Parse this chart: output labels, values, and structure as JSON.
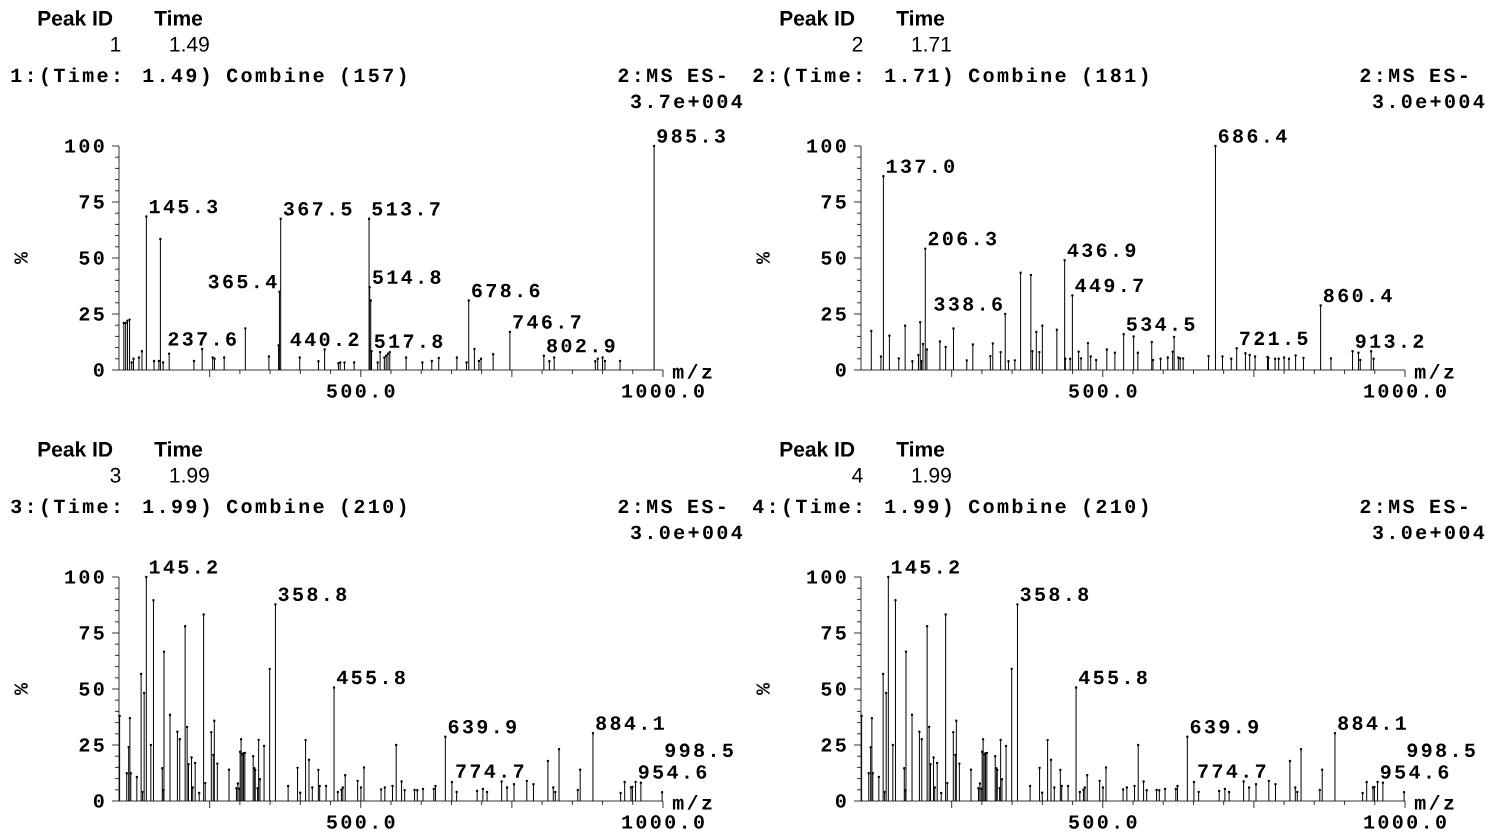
{
  "chart_data": [
    {
      "type": "lollipop",
      "marker": "circle",
      "title": "1:(Time: 1.49) Combine (157)",
      "xlabel": "m/z",
      "ylabel": "%",
      "color": "#000000",
      "xlim": [
        100,
        1000
      ],
      "ylim": [
        0,
        100
      ],
      "xticks": [
        {
          "value": 250,
          "label": null
        },
        {
          "value": 500,
          "label": "500.0"
        },
        {
          "value": 750,
          "label": null
        },
        {
          "value": 1000,
          "label": "1000.0"
        }
      ],
      "yticks": [
        0,
        25,
        50,
        75,
        100
      ],
      "x": [
        108,
        111,
        114,
        117.5,
        121,
        124,
        133,
        138,
        145.3,
        158,
        166,
        168.5,
        173,
        183,
        224,
        237.6,
        255,
        258,
        274,
        309,
        348,
        364,
        365.4,
        367.5,
        399,
        430,
        440.2,
        463,
        466,
        473,
        489,
        513.7,
        514.8,
        516.5,
        517.8,
        528,
        532,
        539,
        542,
        545,
        548,
        575,
        602,
        617.5,
        629,
        659,
        675,
        678.6,
        688,
        695.5,
        699,
        719,
        746.7,
        802.9,
        812,
        820,
        888,
        892,
        900,
        904,
        929,
        985.3
      ],
      "values": [
        21,
        21,
        22,
        22.5,
        3.4,
        5,
        5.6,
        8.4,
        68.5,
        4,
        4,
        58.5,
        3.4,
        7.3,
        4,
        9.4,
        5.6,
        5,
        5.6,
        18.6,
        6,
        11,
        35,
        67.5,
        5.6,
        3.9,
        9.2,
        3,
        3.4,
        3.4,
        3.4,
        67.5,
        37,
        31,
        8.4,
        3.4,
        8,
        5.6,
        6.4,
        7.3,
        8,
        5.6,
        3.4,
        4,
        5.4,
        5.6,
        3.4,
        31,
        9.4,
        4,
        5,
        7,
        17,
        6.4,
        3.9,
        5.6,
        3.9,
        5,
        5.6,
        4,
        4,
        100
      ],
      "annotations": [
        "Peak ID",
        "Time",
        "1",
        "1.49",
        "2:MS ES-",
        "3.7e+004",
        {
          "text": "145.3",
          "x": 145.3,
          "y": 68.5
        },
        {
          "text": "237.6",
          "x": 237.6,
          "y": 9.4
        },
        {
          "text": "365.4",
          "x": 365.4,
          "y": 35
        },
        {
          "text": "367.5",
          "x": 367.5,
          "y": 67.5
        },
        {
          "text": "440.2",
          "x": 440.2,
          "y": 9.2
        },
        {
          "text": "513.7",
          "x": 513.7,
          "y": 67.5
        },
        {
          "text": "514.8",
          "x": 514.8,
          "y": 37
        },
        {
          "text": "517.8",
          "x": 517.8,
          "y": 8.4
        },
        {
          "text": "678.6",
          "x": 678.6,
          "y": 31
        },
        {
          "text": "746.7",
          "x": 746.7,
          "y": 17
        },
        {
          "text": "802.9",
          "x": 802.9,
          "y": 6.4
        },
        {
          "text": "985.3",
          "x": 985.3,
          "y": 100
        }
      ]
    },
    {
      "type": "lollipop",
      "marker": "circle",
      "title": "2:(Time: 1.71) Combine (181)",
      "xlabel": "m/z",
      "ylabel": "%",
      "color": "#000000",
      "xlim": [
        100,
        1000
      ],
      "ylim": [
        0,
        100
      ],
      "xticks": [
        {
          "value": 250,
          "label": null
        },
        {
          "value": 500,
          "label": "500.0"
        },
        {
          "value": 750,
          "label": null
        },
        {
          "value": 1000,
          "label": "1000.0"
        }
      ],
      "yticks": [
        0,
        25,
        50,
        75,
        100
      ],
      "x": [
        117,
        133,
        137.0,
        147,
        162.5,
        173,
        185,
        195,
        198,
        200,
        202.5,
        206.3,
        209,
        230.5,
        240,
        253,
        275,
        285,
        314,
        318,
        331,
        338.6,
        344,
        354.5,
        364,
        381,
        383.5,
        390,
        395,
        400,
        424,
        436.9,
        438,
        446,
        449.7,
        460,
        464,
        475.5,
        480,
        489,
        506.7,
        520,
        534.5,
        551,
        558,
        581,
        583,
        595.6,
        607.5,
        615.6,
        618,
        625,
        628,
        633,
        675,
        686.4,
        698,
        712.5,
        721.5,
        736,
        743,
        752,
        772.5,
        774,
        785,
        791,
        800,
        808,
        819,
        832,
        860.4,
        877.5,
        913.2,
        923,
        926,
        944,
        948
      ],
      "values": [
        17.4,
        6,
        86.5,
        15.3,
        5.2,
        19.8,
        3.9,
        6.7,
        21.3,
        3.9,
        11.6,
        54.2,
        9.2,
        12.7,
        10.3,
        18.5,
        4.3,
        11.4,
        6.2,
        11.8,
        8,
        25,
        3.9,
        4.3,
        43.4,
        42.4,
        8.4,
        17,
        8,
        19.8,
        18,
        49,
        5,
        5,
        33.3,
        8.2,
        5.2,
        12,
        6,
        4.5,
        9.2,
        7.7,
        16,
        15,
        7.7,
        12.5,
        4.5,
        5,
        5.6,
        8.2,
        14.8,
        5.6,
        5.2,
        5.2,
        6.2,
        100,
        6,
        5,
        9.7,
        7.5,
        6.7,
        6,
        5.8,
        5.4,
        5,
        5,
        5.6,
        5,
        6.5,
        5.4,
        28.8,
        5.2,
        8.4,
        7.7,
        4.5,
        8.4,
        5
      ],
      "annotations": [
        "Peak ID",
        "Time",
        "2",
        "1.71",
        "2:MS ES-",
        "3.0e+004",
        {
          "text": "137.0",
          "x": 137.0,
          "y": 86.5
        },
        {
          "text": "206.3",
          "x": 206.3,
          "y": 54.2
        },
        {
          "text": "338.6",
          "x": 338.6,
          "y": 25
        },
        {
          "text": "436.9",
          "x": 436.9,
          "y": 49
        },
        {
          "text": "449.7",
          "x": 449.7,
          "y": 33.3
        },
        {
          "text": "534.5",
          "x": 534.5,
          "y": 16
        },
        {
          "text": "686.4",
          "x": 686.4,
          "y": 100
        },
        {
          "text": "721.5",
          "x": 721.5,
          "y": 9.7
        },
        {
          "text": "860.4",
          "x": 860.4,
          "y": 28.8
        },
        {
          "text": "913.2",
          "x": 913.2,
          "y": 8.4
        }
      ]
    },
    {
      "type": "lollipop",
      "marker": "circle",
      "title": "3:(Time: 1.99) Combine (210)",
      "xlabel": "m/z",
      "ylabel": "%",
      "color": "#000000",
      "xlim": [
        100,
        1000
      ],
      "ylim": [
        0,
        100
      ],
      "xticks": [
        {
          "value": 250,
          "label": null
        },
        {
          "value": 500,
          "label": "500.0"
        },
        {
          "value": 750,
          "label": null
        },
        {
          "value": 1000,
          "label": "1000.0"
        }
      ],
      "yticks": [
        0,
        25,
        50,
        75,
        100
      ],
      "x": [
        101,
        112.8,
        116,
        118,
        119.5,
        129.5,
        136.6,
        139,
        141.6,
        145.2,
        152.7,
        157,
        171.6,
        173,
        174.4,
        184.4,
        196.6,
        200.5,
        209.4,
        212.7,
        215,
        220,
        222,
        226,
        232.7,
        240,
        242.7,
        252.7,
        256,
        257.7,
        262.7,
        282,
        294.3,
        296.6,
        298.8,
        300.4,
        302,
        303.8,
        306,
        308.2,
        322,
        323.8,
        325.4,
        329.3,
        331,
        333.2,
        340,
        349.3,
        358.8,
        379.8,
        395.4,
        399.8,
        408.7,
        414.3,
        419.8,
        429.8,
        432,
        442.6,
        455.8,
        462,
        468,
        470.3,
        474.2,
        494.8,
        500.3,
        505.3,
        533.6,
        539.8,
        552.5,
        558.6,
        567.5,
        572.6,
        589,
        593.5,
        603,
        620.8,
        623.6,
        639.9,
        650.8,
        658.6,
        692.5,
        702,
        709,
        733,
        742,
        753.5,
        774.7,
        785.7,
        809.6,
        818.5,
        821.8,
        828,
        859,
        863,
        884.1,
        929.9,
        936.6,
        947,
        949.4,
        954.6,
        963.4,
        998.5
      ],
      "values": [
        38,
        12.4,
        24,
        37,
        12.4,
        10.7,
        56.7,
        4,
        48.2,
        100,
        25,
        89.6,
        14.6,
        4.8,
        66.7,
        38.5,
        30.9,
        27.6,
        78,
        33.1,
        16.4,
        19.4,
        6,
        17,
        3.6,
        83.3,
        8,
        30.7,
        20.6,
        35.8,
        16.7,
        14,
        5.7,
        7.8,
        5.5,
        22,
        27.6,
        20.9,
        21.3,
        21.5,
        20,
        14.6,
        13.9,
        5.7,
        27.3,
        9.7,
        24.6,
        59,
        87.8,
        6.7,
        14.8,
        3.7,
        27.2,
        18.4,
        6,
        13.9,
        6.7,
        6.7,
        50.7,
        4,
        5,
        6,
        11.5,
        9,
        6,
        15,
        5.2,
        6,
        6.7,
        25,
        8.7,
        4.8,
        4.9,
        4.8,
        5.4,
        5.4,
        6.7,
        28.7,
        8.5,
        4,
        4.5,
        5.4,
        4,
        8.7,
        6,
        7.5,
        9,
        7.5,
        17.9,
        6,
        4,
        23.1,
        4.9,
        14,
        30.3,
        3.6,
        8.5,
        6,
        6.3,
        8.5,
        8.2,
        3.9
      ],
      "annotations": [
        "Peak ID",
        "Time",
        "3",
        "1.99",
        "2:MS ES-",
        "3.0e+004",
        {
          "text": "145.2",
          "x": 145.2,
          "y": 100
        },
        {
          "text": "358.8",
          "x": 358.8,
          "y": 87.8
        },
        {
          "text": "455.8",
          "x": 455.8,
          "y": 50.7
        },
        {
          "text": "639.9",
          "x": 639.9,
          "y": 28.7
        },
        {
          "text": "774.7",
          "x": 774.7,
          "y": 9
        },
        {
          "text": "884.1",
          "x": 884.1,
          "y": 30.3
        },
        {
          "text": "954.6",
          "x": 954.6,
          "y": 8.5
        },
        {
          "text": "998.5",
          "x": 998.5,
          "y": 3.9
        }
      ]
    },
    {
      "type": "lollipop",
      "marker": "circle",
      "title": "4:(Time: 1.99) Combine (210)",
      "xlabel": "m/z",
      "ylabel": "%",
      "color": "#000000",
      "xlim": [
        100,
        1000
      ],
      "ylim": [
        0,
        100
      ],
      "xticks": [
        {
          "value": 250,
          "label": null
        },
        {
          "value": 500,
          "label": "500.0"
        },
        {
          "value": 750,
          "label": null
        },
        {
          "value": 1000,
          "label": "1000.0"
        }
      ],
      "yticks": [
        0,
        25,
        50,
        75,
        100
      ],
      "x": [
        101,
        112.8,
        116,
        118,
        119.5,
        129.5,
        136.6,
        139,
        141.6,
        145.2,
        152.7,
        157,
        171.6,
        173,
        174.4,
        184.4,
        196.6,
        200.5,
        209.4,
        212.7,
        215,
        220,
        222,
        226,
        232.7,
        240,
        242.7,
        252.7,
        256,
        257.7,
        262.7,
        282,
        294.3,
        296.6,
        298.8,
        300.4,
        302,
        303.8,
        306,
        308.2,
        322,
        323.8,
        325.4,
        329.3,
        331,
        333.2,
        340,
        349.3,
        358.8,
        379.8,
        395.4,
        399.8,
        408.7,
        414.3,
        419.8,
        429.8,
        432,
        442.6,
        455.8,
        462,
        468,
        470.3,
        474.2,
        494.8,
        500.3,
        505.3,
        533.6,
        539.8,
        552.5,
        558.6,
        567.5,
        572.6,
        589,
        593.5,
        603,
        620.8,
        623.6,
        639.9,
        650.8,
        658.6,
        692.5,
        702,
        709,
        733,
        742,
        753.5,
        774.7,
        785.7,
        809.6,
        818.5,
        821.8,
        828,
        859,
        863,
        884.1,
        929.9,
        936.6,
        947,
        949.4,
        954.6,
        963.4,
        998.5
      ],
      "values": [
        38,
        12.4,
        24,
        37,
        12.4,
        10.7,
        56.7,
        4,
        48.2,
        100,
        25,
        89.6,
        14.6,
        4.8,
        66.7,
        38.5,
        30.9,
        27.6,
        78,
        33.1,
        16.4,
        19.4,
        6,
        17,
        3.6,
        83.3,
        8,
        30.7,
        20.6,
        35.8,
        16.7,
        14,
        5.7,
        7.8,
        5.5,
        22,
        27.6,
        20.9,
        21.3,
        21.5,
        20,
        14.6,
        13.9,
        5.7,
        27.3,
        9.7,
        24.6,
        59,
        87.8,
        6.7,
        14.8,
        3.7,
        27.2,
        18.4,
        6,
        13.9,
        6.7,
        6.7,
        50.7,
        4,
        5,
        6,
        11.5,
        9,
        6,
        15,
        5.2,
        6,
        6.7,
        25,
        8.7,
        4.8,
        4.9,
        4.8,
        5.4,
        5.4,
        6.7,
        28.7,
        8.5,
        4,
        4.5,
        5.4,
        4,
        8.7,
        6,
        7.5,
        9,
        7.5,
        17.9,
        6,
        4,
        23.1,
        4.9,
        14,
        30.3,
        3.6,
        8.5,
        6,
        6.3,
        8.5,
        8.2,
        3.9
      ],
      "annotations": [
        "Peak ID",
        "Time",
        "4",
        "1.99",
        "2:MS ES-",
        "3.0e+004",
        {
          "text": "145.2",
          "x": 145.2,
          "y": 100
        },
        {
          "text": "358.8",
          "x": 358.8,
          "y": 87.8
        },
        {
          "text": "455.8",
          "x": 455.8,
          "y": 50.7
        },
        {
          "text": "639.9",
          "x": 639.9,
          "y": 28.7
        },
        {
          "text": "774.7",
          "x": 774.7,
          "y": 9
        },
        {
          "text": "884.1",
          "x": 884.1,
          "y": 30.3
        },
        {
          "text": "954.6",
          "x": 954.6,
          "y": 8.5
        },
        {
          "text": "998.5",
          "x": 998.5,
          "y": 3.9
        }
      ]
    }
  ]
}
